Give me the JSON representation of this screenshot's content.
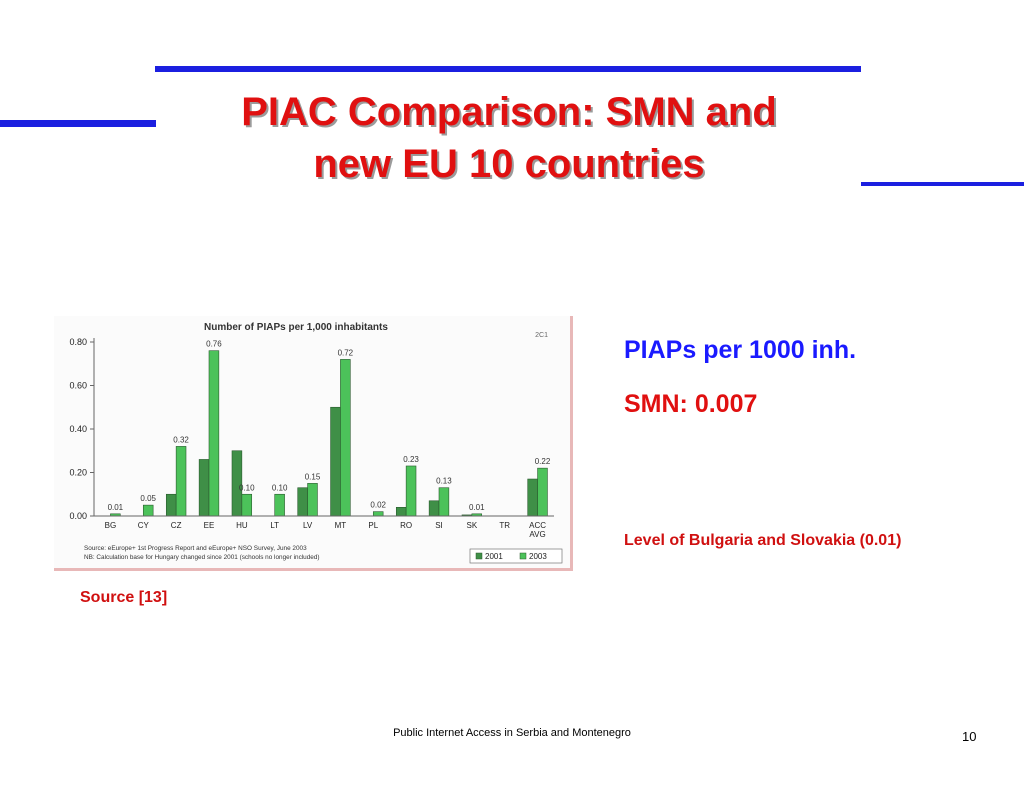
{
  "slide": {
    "title_line1": "PIAC Comparison: SMN and",
    "title_line2": "new EU 10 countries",
    "source": "Source [13]",
    "side_heading": "PIAPs per 1000 inh.",
    "side_value": "SMN: 0.007",
    "side_note": "Level of Bulgaria and Slovakia (0.01)",
    "footer": "Public Internet Access in Serbia and Montenegro",
    "page_number": "10",
    "rule_color": "#1b1fe0",
    "title_color": "#e01010"
  },
  "chart_data": {
    "type": "bar",
    "title": "Number of PIAPs per 1,000 inhabitants",
    "code": "2C1",
    "categories": [
      "BG",
      "CY",
      "CZ",
      "EE",
      "HU",
      "LT",
      "LV",
      "MT",
      "PL",
      "RO",
      "SI",
      "SK",
      "TR",
      "ACC AVG"
    ],
    "category_lines": [
      [
        "BG"
      ],
      [
        "CY"
      ],
      [
        "CZ"
      ],
      [
        "EE"
      ],
      [
        "HU"
      ],
      [
        "LT"
      ],
      [
        "LV"
      ],
      [
        "MT"
      ],
      [
        "PL"
      ],
      [
        "RO"
      ],
      [
        "SI"
      ],
      [
        "SK"
      ],
      [
        "TR"
      ],
      [
        "ACC",
        "AVG"
      ]
    ],
    "series": [
      {
        "name": "2001",
        "color": "#3f8f47",
        "values": [
          0,
          0,
          0.1,
          0.26,
          0.3,
          0,
          0.13,
          0.5,
          0,
          0.04,
          0.07,
          0.005,
          0,
          0.17
        ]
      },
      {
        "name": "2003",
        "color": "#4cc25a",
        "values": [
          0.01,
          0.05,
          0.32,
          0.76,
          0.1,
          0.1,
          0.15,
          0.72,
          0.02,
          0.23,
          0.13,
          0.01,
          0,
          0.22
        ]
      }
    ],
    "data_labels_2003": [
      "0.01",
      "0.05",
      "0.32",
      "0.76",
      "0.10",
      "0.10",
      "0.15",
      "0.72",
      "0.02",
      "0.23",
      "0.13",
      "0.01",
      "",
      "0.22"
    ],
    "ylim": [
      0,
      0.8
    ],
    "yticks": [
      0,
      0.2,
      0.4,
      0.6,
      0.8
    ],
    "ytick_labels": [
      "0.00",
      "0.20",
      "0.40",
      "0.60",
      "0.80"
    ],
    "grid": false,
    "legend_position": "bottom-right",
    "notes": [
      "Source: eEurope+ 1st Progress Report and eEurope+ NSO Survey, June 2003",
      "NB: Calculation base for Hungary changed since 2001 (schools no longer included)"
    ]
  }
}
